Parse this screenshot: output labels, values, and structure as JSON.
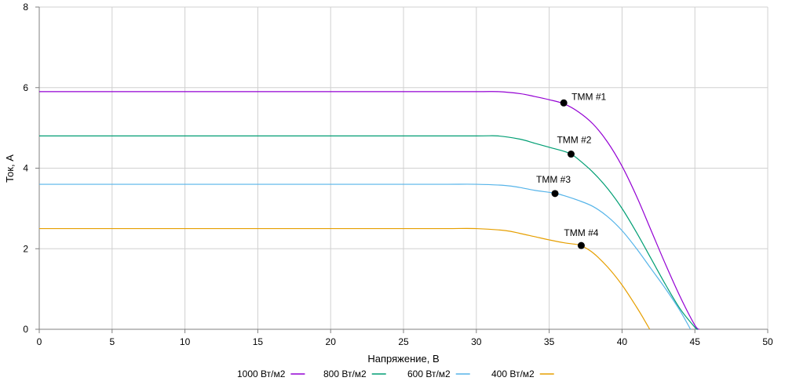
{
  "chart_data": {
    "type": "line",
    "title": "",
    "xlabel": "Напряжение, В",
    "ylabel": "Ток, А",
    "xlim": [
      0,
      50
    ],
    "ylim": [
      0,
      8
    ],
    "xticks": [
      0,
      5,
      10,
      15,
      20,
      25,
      30,
      35,
      40,
      45,
      50
    ],
    "yticks": [
      0,
      2,
      4,
      6,
      8
    ],
    "grid": true,
    "legend_position": "bottom",
    "series": [
      {
        "name": "1000 Вт/м2",
        "color": "#9400d3",
        "x": [
          0,
          5,
          10,
          15,
          20,
          25,
          30,
          31.5,
          33,
          34,
          35,
          36,
          37,
          38,
          39,
          40,
          41,
          42,
          43,
          44,
          45,
          45.3
        ],
        "y": [
          5.9,
          5.9,
          5.9,
          5.9,
          5.9,
          5.9,
          5.9,
          5.9,
          5.85,
          5.78,
          5.7,
          5.6,
          5.4,
          5.1,
          4.65,
          4.05,
          3.3,
          2.45,
          1.6,
          0.8,
          0.1,
          0
        ]
      },
      {
        "name": "800 Вт/м2",
        "color": "#009e73",
        "x": [
          0,
          5,
          10,
          15,
          20,
          25,
          30,
          31.5,
          33,
          34,
          35,
          36,
          36.5,
          37,
          38,
          39,
          40,
          41,
          42,
          43,
          44,
          45,
          45.2
        ],
        "y": [
          4.8,
          4.8,
          4.8,
          4.8,
          4.8,
          4.8,
          4.8,
          4.8,
          4.72,
          4.62,
          4.52,
          4.42,
          4.35,
          4.22,
          3.9,
          3.5,
          3.0,
          2.4,
          1.75,
          1.1,
          0.5,
          0.05,
          0
        ]
      },
      {
        "name": "600 Вт/м2",
        "color": "#56b4e9",
        "x": [
          0,
          5,
          10,
          15,
          20,
          25,
          28,
          30,
          32,
          33,
          34,
          35,
          35.5,
          36,
          37,
          38,
          39,
          40,
          41,
          42,
          43,
          44,
          44.7
        ],
        "y": [
          3.6,
          3.6,
          3.6,
          3.6,
          3.6,
          3.6,
          3.6,
          3.6,
          3.57,
          3.52,
          3.45,
          3.4,
          3.37,
          3.32,
          3.2,
          3.05,
          2.8,
          2.45,
          2.0,
          1.5,
          1.0,
          0.45,
          0
        ]
      },
      {
        "name": "400 Вт/м2",
        "color": "#e69f00",
        "x": [
          0,
          5,
          10,
          15,
          20,
          25,
          28,
          30,
          32,
          33,
          34,
          35,
          36,
          37,
          37.2,
          38,
          39,
          40,
          41,
          41.5,
          41.9
        ],
        "y": [
          2.5,
          2.5,
          2.5,
          2.5,
          2.5,
          2.5,
          2.5,
          2.5,
          2.45,
          2.38,
          2.3,
          2.22,
          2.15,
          2.1,
          2.08,
          1.9,
          1.55,
          1.1,
          0.55,
          0.25,
          0
        ]
      }
    ],
    "annotations": [
      {
        "label": "ТММ #1",
        "x": 36.0,
        "y": 5.62,
        "label_dx": 10,
        "label_dy": -4
      },
      {
        "label": "ТММ #2",
        "x": 36.5,
        "y": 4.35,
        "label_dx": -18,
        "label_dy": -14
      },
      {
        "label": "ТММ #3",
        "x": 35.4,
        "y": 3.37,
        "label_dx": -24,
        "label_dy": -14
      },
      {
        "label": "ТММ #4",
        "x": 37.2,
        "y": 2.08,
        "label_dx": -22,
        "label_dy": -12
      }
    ]
  }
}
